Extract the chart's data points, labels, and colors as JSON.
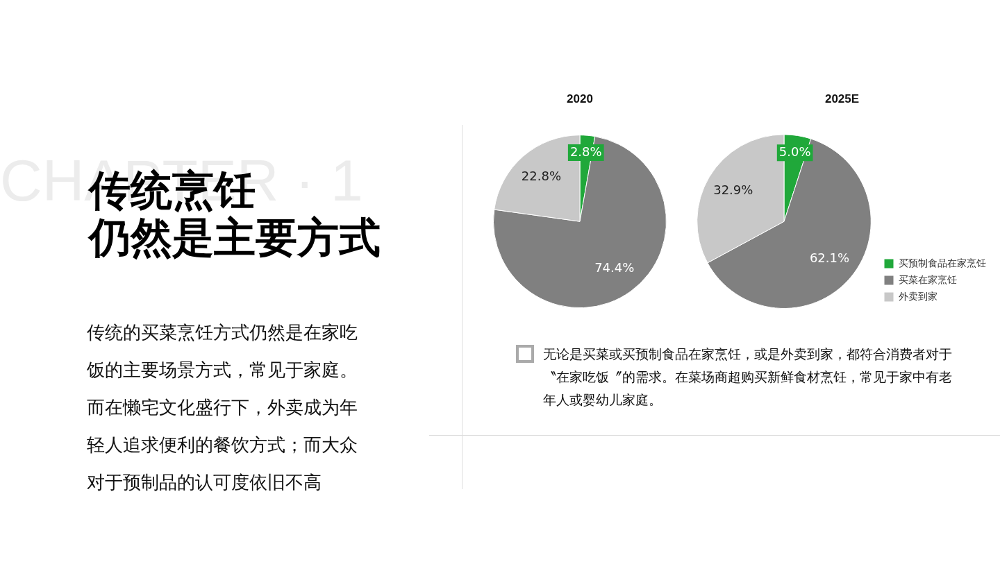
{
  "chart_data": [
    {
      "type": "pie",
      "title": "2020",
      "categories": [
        null,
        null,
        null
      ],
      "values": [
        2.8,
        74.4,
        22.8
      ],
      "colors": [
        "#20a83a",
        "#808080",
        "#c8c8c8"
      ],
      "value_labels": [
        "2.8%",
        "74.4%",
        "22.8%"
      ],
      "legend": false
    },
    {
      "type": "pie",
      "title": "2025E",
      "categories": [
        "买预制食品在家烹饪",
        "买菜在家烹饪",
        "外卖到家"
      ],
      "values": [
        5.0,
        62.1,
        32.9
      ],
      "colors": [
        "#20a83a",
        "#808080",
        "#c8c8c8"
      ],
      "value_labels": [
        "5.0%",
        "62.1%",
        "32.9%"
      ],
      "legend": "bottom right"
    },
    {
      "type": "other",
      "title": "传统烹饪",
      "subtitle": "仍然是主要方式",
      "annotations": [
        "CHAPTER · 1",
        "传统的买菜烹饪方式仍然是在家吃饭的主要场景方式，常见于家庭。而在懒宅文化盛行下，外卖成为年轻人追求便利的餐饮方式；而大众对于预制品的认可度依旧不高",
        "无论是买菜或买预制食品在家烹饪，或是外卖到家，都符合消费者对于〝在家吃饭〞的需求。在菜场商超购买新鲜食材烹饪，常见于家中有老年人或婴幼儿家庭。"
      ]
    }
  ]
}
